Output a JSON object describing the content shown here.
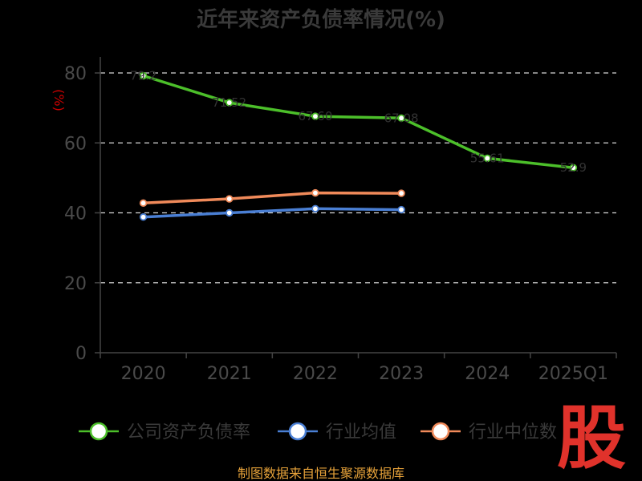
{
  "chart_data": {
    "type": "line",
    "title": "近年来资产负债率情况(%)",
    "ylabel": "(%)",
    "ylim": [
      0,
      80
    ],
    "yticks": [
      0,
      20,
      40,
      60,
      80
    ],
    "categories": [
      "2020",
      "2021",
      "2022",
      "2023",
      "2024",
      "2025Q1"
    ],
    "grid": true,
    "legend_position": "bottom",
    "series": [
      {
        "name": "公司资产负债率",
        "color": "#4cbf2a",
        "values": [
          79.2,
          71.5,
          67.6,
          67.1,
          55.6,
          52.9
        ],
        "labels": [
          "79.2",
          "71.52",
          "67.60",
          "67.08",
          "55.61",
          "52.9"
        ]
      },
      {
        "name": "行业均值",
        "color": "#4a7fd4",
        "values": [
          38.8,
          40.0,
          41.2,
          40.9,
          null,
          null
        ]
      },
      {
        "name": "行业中位数",
        "color": "#f08a5a",
        "values": [
          42.8,
          44.0,
          45.7,
          45.6,
          null,
          null
        ]
      }
    ]
  },
  "source": "制图数据来自恒生聚源数据库",
  "watermark": "股"
}
